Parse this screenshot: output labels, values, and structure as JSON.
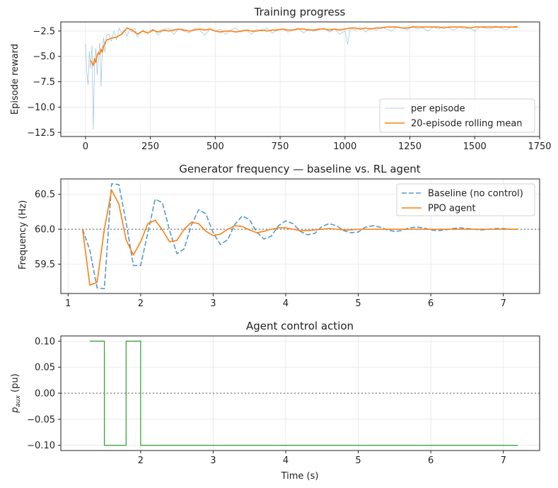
{
  "chart_data": [
    {
      "type": "line",
      "title": "Training progress",
      "xlabel": "",
      "ylabel": "Episode reward",
      "xlim": [
        -95,
        1750
      ],
      "ylim": [
        -12.9,
        -1.6
      ],
      "xticks": [
        0,
        250,
        500,
        750,
        1000,
        1250,
        1500,
        1750
      ],
      "yticks": [
        -12.5,
        -10.0,
        -7.5,
        -5.0,
        -2.5
      ],
      "grid": true,
      "legend_position": "lower-right",
      "series": [
        {
          "name": "per episode",
          "color": "#1f77b4",
          "alpha": 0.45,
          "style": "thin",
          "x": [
            0,
            5,
            10,
            15,
            20,
            25,
            30,
            35,
            40,
            45,
            50,
            55,
            60,
            65,
            70,
            75,
            80,
            90,
            100,
            110,
            120,
            130,
            140,
            150,
            160,
            170,
            180,
            190,
            200,
            220,
            240,
            260,
            280,
            300,
            320,
            340,
            360,
            380,
            400,
            420,
            440,
            460,
            480,
            500,
            520,
            540,
            560,
            580,
            600,
            620,
            640,
            660,
            680,
            700,
            720,
            740,
            760,
            780,
            800,
            820,
            840,
            860,
            880,
            900,
            920,
            940,
            960,
            980,
            1000,
            1010,
            1020,
            1040,
            1060,
            1080,
            1100,
            1120,
            1140,
            1160,
            1180,
            1200,
            1220,
            1240,
            1260,
            1280,
            1300,
            1320,
            1340,
            1360,
            1380,
            1400,
            1420,
            1440,
            1460,
            1480,
            1500,
            1520,
            1540,
            1560,
            1580,
            1600,
            1620,
            1640,
            1666
          ],
          "y": [
            -3.8,
            -6.5,
            -7.8,
            -4.5,
            -6.2,
            -3.9,
            -12.2,
            -5.8,
            -4.2,
            -6.8,
            -5.2,
            -3.6,
            -8.0,
            -4.3,
            -3.2,
            -4.6,
            -3.0,
            -2.8,
            -3.5,
            -2.5,
            -3.4,
            -2.2,
            -2.7,
            -2.4,
            -3.0,
            -2.3,
            -2.6,
            -2.2,
            -3.1,
            -2.4,
            -2.7,
            -2.3,
            -2.9,
            -2.4,
            -2.2,
            -2.8,
            -2.3,
            -2.5,
            -2.7,
            -2.2,
            -2.4,
            -2.9,
            -2.3,
            -2.5,
            -2.3,
            -2.8,
            -2.4,
            -2.2,
            -2.6,
            -2.4,
            -2.8,
            -2.3,
            -2.5,
            -2.2,
            -2.7,
            -2.4,
            -2.3,
            -2.6,
            -2.4,
            -2.2,
            -2.7,
            -2.3,
            -2.5,
            -2.4,
            -2.2,
            -2.6,
            -2.3,
            -2.8,
            -2.5,
            -3.8,
            -2.3,
            -2.4,
            -2.1,
            -2.6,
            -2.2,
            -2.4,
            -2.1,
            -2.3,
            -2.5,
            -2.1,
            -2.2,
            -2.4,
            -2.0,
            -2.3,
            -2.2,
            -2.5,
            -2.1,
            -2.3,
            -2.0,
            -2.2,
            -2.4,
            -2.1,
            -2.3,
            -2.2,
            -2.5,
            -2.1,
            -2.2,
            -2.3,
            -2.0,
            -2.2,
            -2.4,
            -2.1,
            -2.0
          ]
        },
        {
          "name": "20-episode rolling mean",
          "color": "#ff7f0e",
          "x": [
            19,
            25,
            30,
            35,
            40,
            45,
            50,
            55,
            60,
            65,
            70,
            80,
            90,
            100,
            120,
            140,
            160,
            180,
            200,
            220,
            240,
            260,
            280,
            300,
            320,
            340,
            360,
            380,
            400,
            420,
            440,
            460,
            480,
            500,
            520,
            540,
            560,
            580,
            600,
            620,
            640,
            660,
            680,
            700,
            720,
            740,
            760,
            780,
            800,
            820,
            840,
            860,
            880,
            900,
            920,
            940,
            960,
            980,
            1000,
            1020,
            1040,
            1060,
            1080,
            1100,
            1120,
            1140,
            1160,
            1180,
            1200,
            1220,
            1240,
            1260,
            1280,
            1300,
            1320,
            1340,
            1360,
            1380,
            1400,
            1420,
            1440,
            1460,
            1480,
            1500,
            1520,
            1540,
            1560,
            1580,
            1600,
            1620,
            1640,
            1666
          ],
          "y": [
            -5.4,
            -5.6,
            -5.9,
            -5.2,
            -5.6,
            -4.9,
            -4.6,
            -4.8,
            -4.3,
            -4.6,
            -4.0,
            -3.4,
            -3.3,
            -3.2,
            -3.1,
            -2.8,
            -2.2,
            -2.4,
            -2.8,
            -2.5,
            -2.7,
            -2.4,
            -2.6,
            -2.4,
            -2.5,
            -2.4,
            -2.3,
            -2.4,
            -2.5,
            -2.4,
            -2.3,
            -2.4,
            -2.3,
            -2.5,
            -2.6,
            -2.5,
            -2.5,
            -2.6,
            -2.5,
            -2.4,
            -2.5,
            -2.5,
            -2.4,
            -2.5,
            -2.4,
            -2.4,
            -2.3,
            -2.4,
            -2.4,
            -2.3,
            -2.3,
            -2.4,
            -2.4,
            -2.3,
            -2.3,
            -2.4,
            -2.3,
            -2.4,
            -2.3,
            -2.2,
            -2.2,
            -2.3,
            -2.2,
            -2.3,
            -2.2,
            -2.2,
            -2.1,
            -2.1,
            -2.1,
            -2.2,
            -2.2,
            -2.1,
            -2.1,
            -2.1,
            -2.1,
            -2.1,
            -2.1,
            -2.2,
            -2.1,
            -2.1,
            -2.1,
            -2.1,
            -2.2,
            -2.1,
            -2.1,
            -2.1,
            -2.1,
            -2.1,
            -2.1,
            -2.1,
            -2.1,
            -2.1
          ]
        }
      ]
    },
    {
      "type": "line",
      "title": "Generator frequency — baseline vs. RL agent",
      "xlabel": "",
      "ylabel": "Frequency (Hz)",
      "xlim": [
        0.9,
        7.5
      ],
      "ylim": [
        59.08,
        60.72
      ],
      "xticks": [
        1,
        2,
        3,
        4,
        5,
        6,
        7
      ],
      "yticks": [
        59.5,
        60.0,
        60.5
      ],
      "hline": 60.0,
      "grid": true,
      "legend_position": "top-right",
      "series": [
        {
          "name": "Baseline (no control)",
          "color": "#1f77b4",
          "style": "dashed",
          "x": [
            1.2,
            1.3,
            1.4,
            1.5,
            1.6,
            1.7,
            1.8,
            1.9,
            2.0,
            2.1,
            2.2,
            2.3,
            2.4,
            2.5,
            2.6,
            2.7,
            2.8,
            2.9,
            3.0,
            3.1,
            3.2,
            3.3,
            3.4,
            3.5,
            3.6,
            3.7,
            3.8,
            3.9,
            4.0,
            4.1,
            4.2,
            4.3,
            4.4,
            4.5,
            4.6,
            4.7,
            4.8,
            4.9,
            5.0,
            5.1,
            5.2,
            5.3,
            5.4,
            5.5,
            5.6,
            5.7,
            5.8,
            5.9,
            6.0,
            6.1,
            6.2,
            6.3,
            6.4,
            6.5,
            6.6,
            6.7,
            6.8,
            6.9,
            7.0,
            7.1,
            7.2
          ],
          "y": [
            60.0,
            59.7,
            59.16,
            59.15,
            60.65,
            60.64,
            60.1,
            59.48,
            59.48,
            59.95,
            60.43,
            60.38,
            59.98,
            59.65,
            59.72,
            60.06,
            60.28,
            60.22,
            59.95,
            59.78,
            59.85,
            60.07,
            60.19,
            60.14,
            59.96,
            59.86,
            59.9,
            60.05,
            60.12,
            60.08,
            59.97,
            59.92,
            59.94,
            60.04,
            60.08,
            60.05,
            59.98,
            59.95,
            59.96,
            60.03,
            60.05,
            60.03,
            59.99,
            59.97,
            59.98,
            60.02,
            60.03,
            60.02,
            59.99,
            59.98,
            59.99,
            60.01,
            60.02,
            60.01,
            60.0,
            59.99,
            60.0,
            60.01,
            60.01,
            60.0,
            60.0
          ]
        },
        {
          "name": "PPO agent",
          "color": "#ff7f0e",
          "x": [
            1.2,
            1.3,
            1.4,
            1.5,
            1.6,
            1.7,
            1.8,
            1.9,
            2.0,
            2.1,
            2.2,
            2.3,
            2.4,
            2.5,
            2.6,
            2.7,
            2.8,
            2.9,
            3.0,
            3.1,
            3.2,
            3.3,
            3.4,
            3.5,
            3.6,
            3.7,
            3.8,
            3.9,
            4.0,
            4.1,
            4.2,
            4.3,
            4.4,
            4.5,
            4.6,
            4.7,
            4.8,
            4.9,
            5.0,
            5.2,
            5.4,
            5.6,
            5.8,
            6.0,
            6.2,
            6.4,
            6.6,
            6.8,
            7.0,
            7.2
          ],
          "y": [
            60.0,
            59.2,
            59.24,
            60.0,
            60.56,
            60.36,
            59.85,
            59.63,
            59.82,
            60.08,
            60.13,
            59.99,
            59.82,
            59.84,
            60.0,
            60.1,
            60.08,
            59.97,
            59.91,
            59.93,
            60.0,
            60.05,
            60.04,
            59.99,
            59.95,
            59.97,
            60.0,
            60.02,
            60.02,
            60.0,
            59.98,
            59.98,
            59.99,
            60.0,
            60.01,
            60.0,
            59.99,
            59.99,
            60.0,
            60.0,
            60.0,
            60.0,
            60.0,
            60.0,
            60.0,
            60.0,
            60.0,
            60.0,
            60.0,
            60.0
          ]
        }
      ]
    },
    {
      "type": "line",
      "title": "Agent control action",
      "xlabel": "Time (s)",
      "ylabel_main": "p",
      "ylabel_sub": "aux",
      "ylabel_suffix": " (pu)",
      "xlim": [
        0.9,
        7.5
      ],
      "ylim": [
        -0.11,
        0.11
      ],
      "xticks": [
        2,
        3,
        4,
        5,
        6,
        7
      ],
      "yticks": [
        -0.1,
        -0.05,
        0.0,
        0.05,
        0.1
      ],
      "ytick_labels": [
        "−0.10",
        "−0.05",
        "0.00",
        "0.05",
        "0.10"
      ],
      "hline": 0.0,
      "grid": true,
      "series": [
        {
          "name": "",
          "color": "#2ca02c",
          "style": "step",
          "x": [
            1.3,
            1.5,
            1.5,
            1.8,
            1.8,
            2.0,
            2.0,
            7.2
          ],
          "y": [
            0.1,
            0.1,
            -0.1,
            -0.1,
            0.1,
            0.1,
            -0.1,
            -0.1
          ]
        }
      ]
    }
  ]
}
